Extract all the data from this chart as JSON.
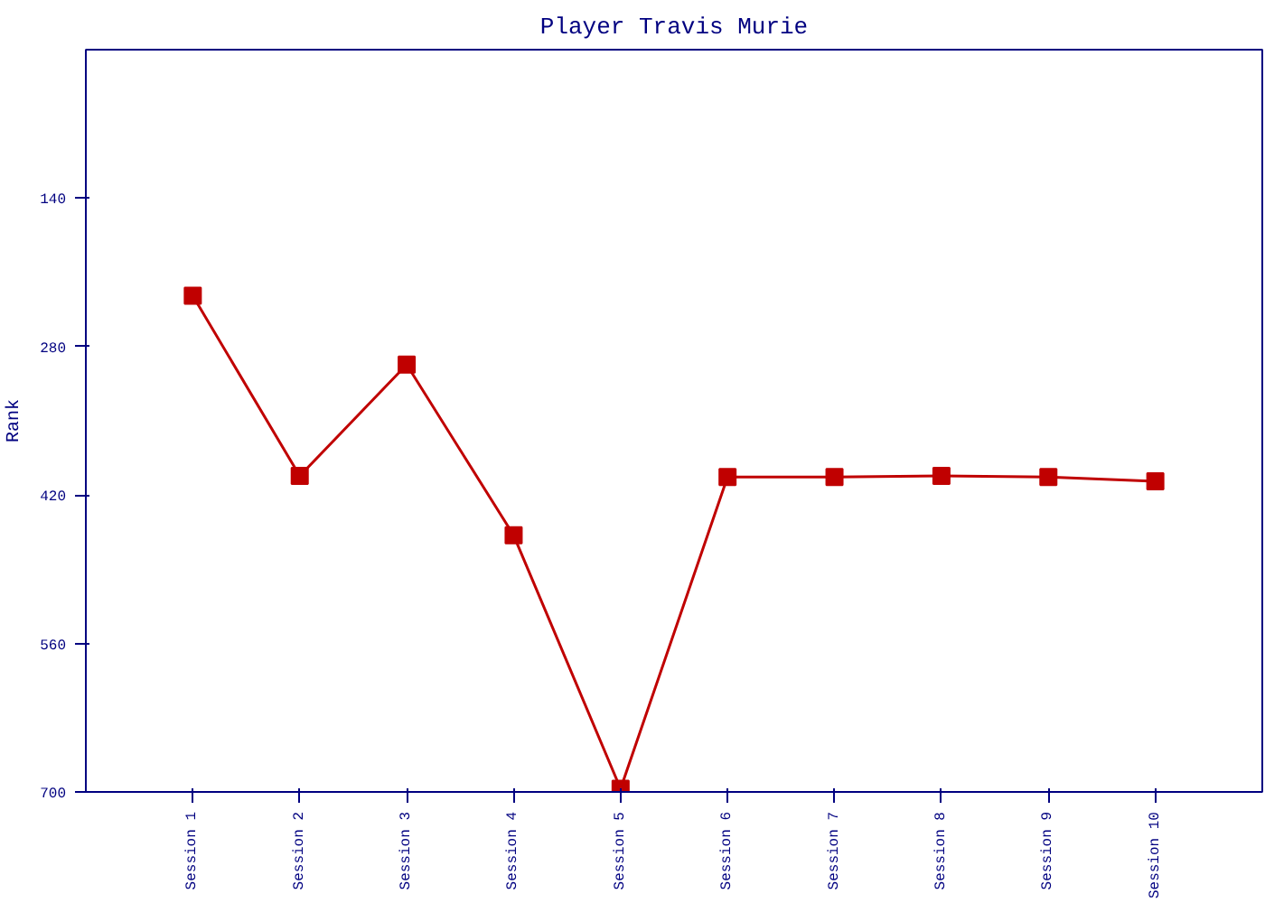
{
  "chart_data": {
    "type": "line",
    "title": "Player Travis Murie",
    "ylabel": "Rank",
    "categories": [
      "Session 1",
      "Session 2",
      "Session 3",
      "Session 4",
      "Session 5",
      "Session 6",
      "Session 7",
      "Session 8",
      "Session 9",
      "Session 10"
    ],
    "series": [
      {
        "color": "#c00000",
        "values": [
          232,
          402,
          297,
          458,
          697,
          403,
          403,
          402,
          403,
          407
        ]
      }
    ],
    "ylim": [
      700,
      0
    ],
    "yticks": [
      140,
      280,
      420,
      560,
      700
    ],
    "grid": false,
    "marker": "square",
    "line_style": "solid"
  }
}
